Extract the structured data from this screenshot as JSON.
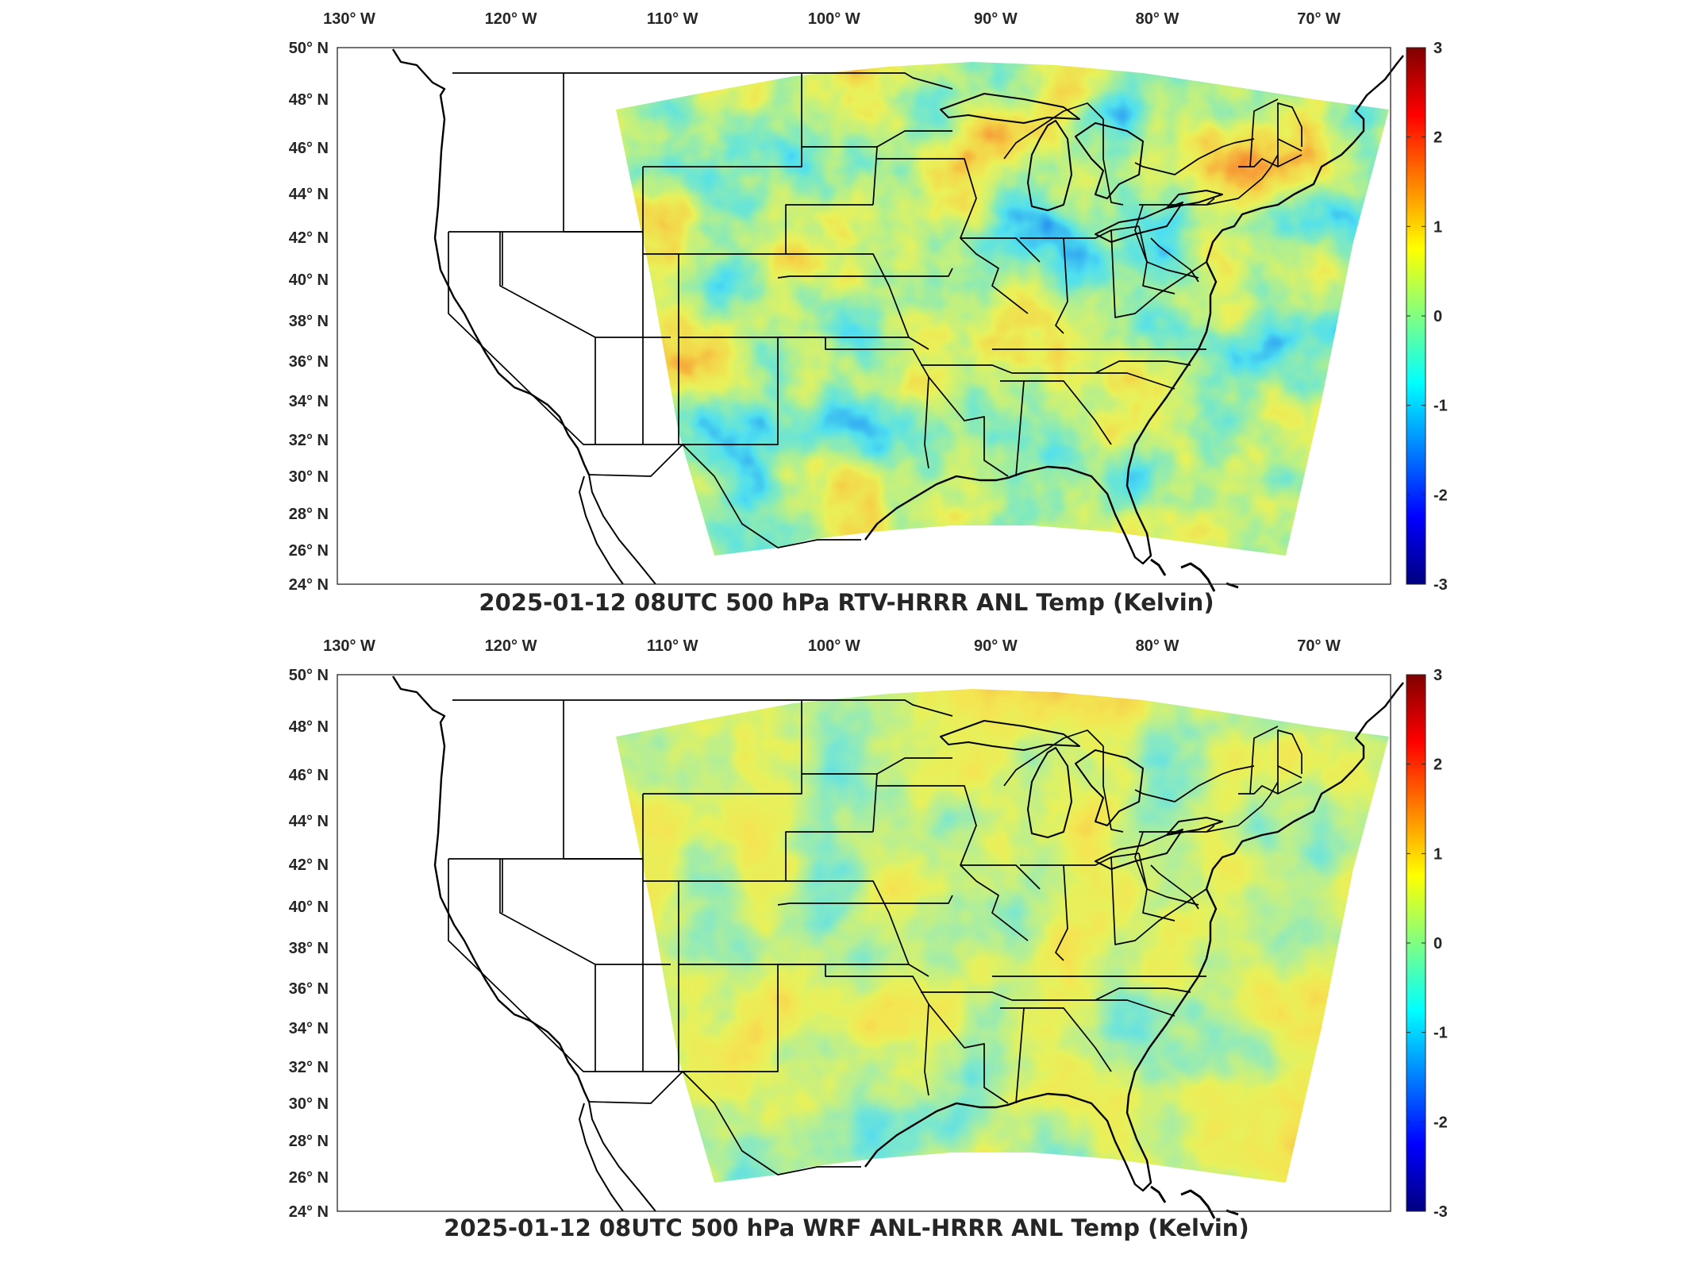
{
  "panels": [
    {
      "title": "2025-01-12 08UTC 500 hPa RTV-HRRR ANL Temp (Kelvin)",
      "variant": "rtv"
    },
    {
      "title": "2025-01-12 08UTC 500 hPa WRF ANL-HRRR ANL Temp (Kelvin)",
      "variant": "wrf"
    }
  ],
  "longitude_labels": [
    "130° W",
    "120° W",
    "110° W",
    "100° W",
    "90° W",
    "80° W",
    "70° W"
  ],
  "latitude_labels": [
    "50° N",
    "48° N",
    "46° N",
    "44° N",
    "42° N",
    "40° N",
    "38° N",
    "36° N",
    "34° N",
    "32° N",
    "30° N",
    "28° N",
    "26° N",
    "24° N"
  ],
  "colorbar": {
    "ticks": [
      "3",
      "2",
      "1",
      "0",
      "-1",
      "-2",
      "-3"
    ],
    "colormap": "jet",
    "range": [
      -3,
      3
    ]
  },
  "colors": {
    "dark-red": "#800000",
    "red": "#ff0000",
    "yellow": "#ffff00",
    "green": "#80ff80",
    "cyan": "#00ffff",
    "blue": "#0000ff",
    "dark-blue": "#000080"
  }
}
